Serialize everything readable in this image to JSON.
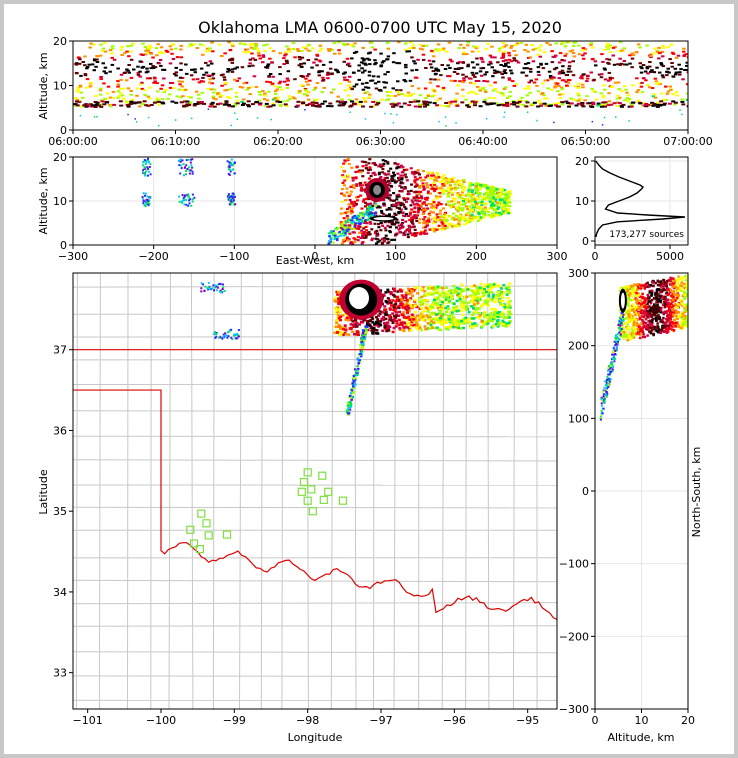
{
  "title": "Oklahoma LMA 0600-0700 UTC May 15, 2020",
  "colors": {
    "boundary_state": "#dd0000",
    "county": "#c8c8c8",
    "station": "#7fe040",
    "grid": "#e6e6e6"
  },
  "chart_data": [
    {
      "id": "time-height",
      "type": "heatmap",
      "ylabel": "Altitude, km",
      "xlim": [
        "06:00:00",
        "07:00:00"
      ],
      "ylim": [
        0,
        20
      ],
      "xticks": [
        "06:00:00",
        "06:10:00",
        "06:20:00",
        "06:30:00",
        "06:40:00",
        "06:50:00",
        "07:00:00"
      ],
      "yticks": [
        "0",
        "10",
        "20"
      ]
    },
    {
      "id": "ew-height",
      "type": "heatmap",
      "xlabel": "East-West, km",
      "ylabel": "Altitude, km",
      "xlim": [
        -300,
        300
      ],
      "ylim": [
        0,
        20
      ],
      "xticks": [
        "−300",
        "−200",
        "−100",
        "0",
        "100",
        "200",
        "300"
      ],
      "yticks": [
        "0",
        "10",
        "20"
      ]
    },
    {
      "id": "altitude-histogram",
      "type": "line",
      "annotation": "173,277 sources",
      "xlim": [
        0,
        6200
      ],
      "ylim": [
        -1,
        21
      ],
      "xticks": [
        "0",
        "5000"
      ],
      "yticks": [
        "0",
        "10",
        "20"
      ],
      "altitude_km": [
        1,
        2,
        3,
        4,
        4.8,
        5.5,
        6,
        6.5,
        7,
        8,
        9,
        10,
        11,
        12,
        13,
        13.5,
        14,
        15,
        16,
        17,
        18,
        19,
        20
      ],
      "counts": [
        60,
        120,
        250,
        500,
        1500,
        4500,
        6000,
        3500,
        1500,
        700,
        900,
        1600,
        2300,
        2800,
        3100,
        3200,
        3000,
        2300,
        1600,
        1000,
        500,
        250,
        50
      ]
    },
    {
      "id": "plan-view",
      "type": "heatmap",
      "xlabel": "Longitude",
      "ylabel": "Latitude",
      "xlim": [
        -101.2,
        -94.6
      ],
      "ylim": [
        32.55,
        37.95
      ],
      "xticks": [
        "−101",
        "−100",
        "−99",
        "−98",
        "−97",
        "−96",
        "−95"
      ],
      "yticks": [
        "33",
        "34",
        "35",
        "36",
        "37"
      ],
      "stations": [
        {
          "lon": -98.0,
          "lat": 35.48
        },
        {
          "lon": -97.8,
          "lat": 35.44
        },
        {
          "lon": -98.05,
          "lat": 35.36
        },
        {
          "lon": -97.95,
          "lat": 35.27
        },
        {
          "lon": -98.08,
          "lat": 35.24
        },
        {
          "lon": -97.72,
          "lat": 35.24
        },
        {
          "lon": -97.52,
          "lat": 35.13
        },
        {
          "lon": -98.0,
          "lat": 35.13
        },
        {
          "lon": -97.78,
          "lat": 35.14
        },
        {
          "lon": -97.93,
          "lat": 35.0
        },
        {
          "lon": -99.45,
          "lat": 34.97
        },
        {
          "lon": -99.38,
          "lat": 34.85
        },
        {
          "lon": -99.6,
          "lat": 34.77
        },
        {
          "lon": -99.35,
          "lat": 34.7
        },
        {
          "lon": -99.1,
          "lat": 34.71
        },
        {
          "lon": -99.55,
          "lat": 34.6
        },
        {
          "lon": -99.47,
          "lat": 34.53
        }
      ]
    },
    {
      "id": "ns-height",
      "type": "heatmap",
      "xlabel": "Altitude, km",
      "ylabel": "North-South, km",
      "xlim": [
        0,
        20
      ],
      "ylim": [
        -300,
        300
      ],
      "xticks": [
        "0",
        "10",
        "20"
      ],
      "yticks": [
        "−300",
        "−200",
        "−100",
        "0",
        "100",
        "200",
        "300"
      ]
    }
  ]
}
